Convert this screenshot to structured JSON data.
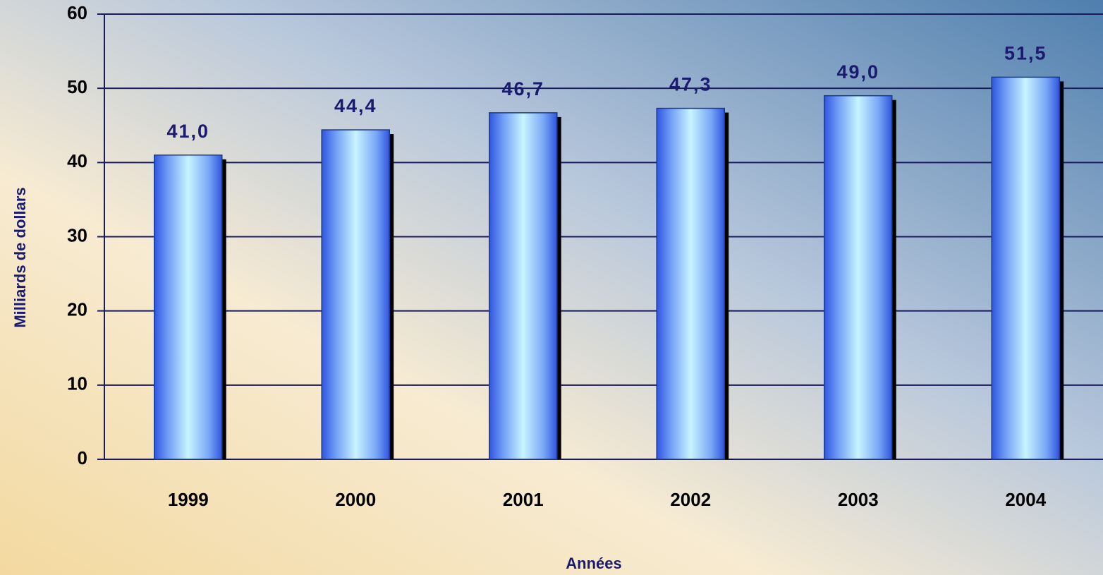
{
  "chart_data": {
    "type": "bar",
    "categories": [
      "1999",
      "2000",
      "2001",
      "2002",
      "2003",
      "2004"
    ],
    "values": [
      41.0,
      44.4,
      46.7,
      47.3,
      49.0,
      51.5
    ],
    "value_labels": [
      "41,0",
      "44,4",
      "46,7",
      "47,3",
      "49,0",
      "51,5"
    ],
    "color": "#4a78f0",
    "y_label": "Milliards de dollars",
    "x_label": "Années",
    "ylim": [
      0,
      60
    ],
    "yticks": [
      0,
      10,
      20,
      30,
      40,
      50,
      60
    ],
    "grid": true
  }
}
